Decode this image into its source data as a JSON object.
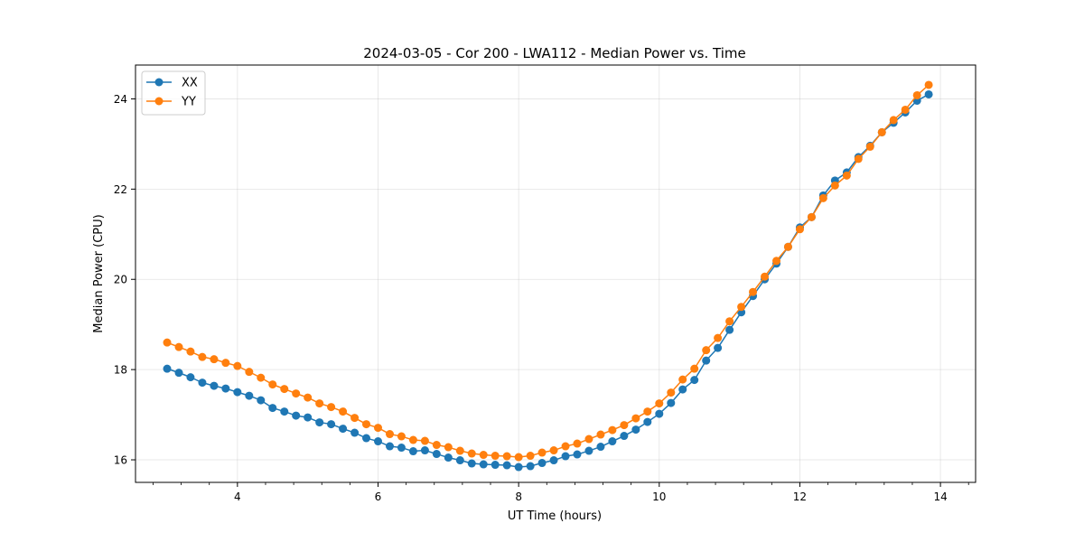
{
  "chart_data": {
    "type": "line",
    "title": "2024-03-05 - Cor 200 - LWA112 - Median Power vs. Time",
    "xlabel": "UT Time (hours)",
    "ylabel": "Median Power (CPU)",
    "xlim": [
      2.55,
      14.5
    ],
    "ylim": [
      15.5,
      24.75
    ],
    "xticks": [
      4,
      6,
      8,
      10,
      12,
      14
    ],
    "xtick_labels": [
      "4",
      "6",
      "8",
      "10",
      "12",
      "14"
    ],
    "yticks": [
      16,
      18,
      20,
      22,
      24
    ],
    "ytick_labels": [
      "16",
      "18",
      "20",
      "22",
      "24"
    ],
    "grid": true,
    "legend": "top-left",
    "x": [
      3.0,
      3.167,
      3.333,
      3.5,
      3.667,
      3.833,
      4.0,
      4.167,
      4.333,
      4.5,
      4.667,
      4.833,
      5.0,
      5.167,
      5.333,
      5.5,
      5.667,
      5.833,
      6.0,
      6.167,
      6.333,
      6.5,
      6.667,
      6.833,
      7.0,
      7.167,
      7.333,
      7.5,
      7.667,
      7.833,
      8.0,
      8.167,
      8.333,
      8.5,
      8.667,
      8.833,
      9.0,
      9.167,
      9.333,
      9.5,
      9.667,
      9.833,
      10.0,
      10.167,
      10.333,
      10.5,
      10.667,
      10.833,
      11.0,
      11.167,
      11.333,
      11.5,
      11.667,
      11.833,
      12.0,
      12.167,
      12.333,
      12.5,
      12.667,
      12.833,
      13.0,
      13.167,
      13.333,
      13.5,
      13.667,
      13.833
    ],
    "series": [
      {
        "name": "XX",
        "color": "#1f77b4",
        "values": [
          18.02,
          17.93,
          17.83,
          17.71,
          17.64,
          17.58,
          17.5,
          17.42,
          17.32,
          17.15,
          17.07,
          16.98,
          16.94,
          16.83,
          16.79,
          16.69,
          16.6,
          16.48,
          16.41,
          16.3,
          16.27,
          16.19,
          16.21,
          16.13,
          16.05,
          15.99,
          15.92,
          15.9,
          15.89,
          15.88,
          15.84,
          15.86,
          15.93,
          15.99,
          16.08,
          16.12,
          16.2,
          16.29,
          16.41,
          16.53,
          16.67,
          16.84,
          17.02,
          17.26,
          17.56,
          17.77,
          18.2,
          18.48,
          18.88,
          19.27,
          19.63,
          20.0,
          20.35,
          20.72,
          21.15,
          21.38,
          21.86,
          22.19,
          22.37,
          22.71,
          22.96,
          23.26,
          23.47,
          23.7,
          23.96,
          24.1
        ]
      },
      {
        "name": "YY",
        "color": "#ff7f0e",
        "values": [
          18.6,
          18.5,
          18.4,
          18.28,
          18.23,
          18.15,
          18.08,
          17.95,
          17.82,
          17.67,
          17.57,
          17.47,
          17.38,
          17.25,
          17.17,
          17.07,
          16.93,
          16.79,
          16.71,
          16.57,
          16.52,
          16.44,
          16.42,
          16.33,
          16.28,
          16.2,
          16.14,
          16.11,
          16.09,
          16.08,
          16.06,
          16.09,
          16.16,
          16.21,
          16.3,
          16.36,
          16.46,
          16.56,
          16.66,
          16.77,
          16.92,
          17.07,
          17.25,
          17.49,
          17.78,
          18.02,
          18.43,
          18.7,
          19.07,
          19.39,
          19.72,
          20.06,
          20.41,
          20.72,
          21.11,
          21.38,
          21.8,
          22.08,
          22.3,
          22.67,
          22.94,
          23.26,
          23.53,
          23.76,
          24.08,
          24.31
        ]
      }
    ]
  }
}
